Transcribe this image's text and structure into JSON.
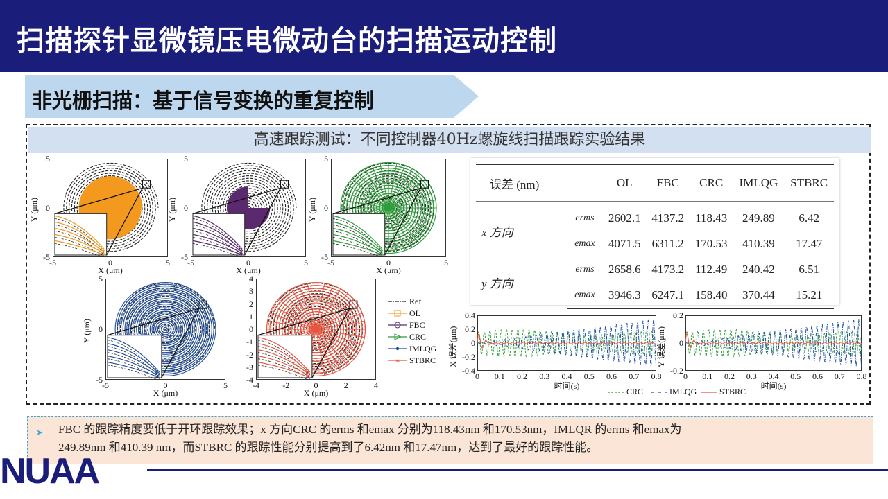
{
  "header": {
    "title": "扫描探针显微镜压电微动台的扫描运动控制"
  },
  "section": {
    "title": "非光栅扫描：基于信号变换的重复控制"
  },
  "panel": {
    "caption": "高速跟踪测试：不同控制器40Hz螺旋线扫描跟踪实验结果"
  },
  "colors": {
    "header_bg": "#1a1d7a",
    "ref": "#222222",
    "OL": "#f39a1e",
    "FBC": "#5b2a6e",
    "CRC": "#2e9e3a",
    "IMLQG": "#1f4e9c",
    "STBRC": "#e8543e"
  },
  "spiral_plots": [
    {
      "name": "OL",
      "xlabel": "X (μm)",
      "ylabel": "Y (μm)",
      "xticks": [
        "-5",
        "0",
        "5"
      ],
      "yticks": [
        "5",
        "0",
        "-5"
      ],
      "color": "#f39a1e"
    },
    {
      "name": "FBC",
      "xlabel": "X (μm)",
      "ylabel": "Y (μm)",
      "xticks": [
        "-5",
        "0",
        "5"
      ],
      "yticks": [
        "5",
        "0",
        "-5"
      ],
      "color": "#5b2a6e"
    },
    {
      "name": "CRC",
      "xlabel": "X (μm)",
      "ylabel": "Y (μm)",
      "xticks": [
        "-5",
        "0",
        "5"
      ],
      "yticks": [
        "5",
        "0",
        "-5"
      ],
      "color": "#2e9e3a"
    },
    {
      "name": "IMLQG",
      "xlabel": "X (μm)",
      "ylabel": "Y (μm)",
      "xticks": [
        "-5",
        "0",
        "5"
      ],
      "yticks": [
        "5",
        "0",
        "-5"
      ],
      "color": "#1f4e9c"
    },
    {
      "name": "STBRC",
      "xlabel": "X (μm)",
      "ylabel": "",
      "xticks": [
        "-4",
        "-2",
        "0",
        "2",
        "4"
      ],
      "yticks": [
        "4",
        "3",
        "2",
        "1",
        "0",
        "-1",
        "-2",
        "-3",
        "-4"
      ],
      "color": "#e8543e"
    }
  ],
  "legend": [
    {
      "label": "Ref",
      "color": "#222222",
      "marker": "dashdot"
    },
    {
      "label": "OL",
      "color": "#f39a1e",
      "marker": "square"
    },
    {
      "label": "FBC",
      "color": "#5b2a6e",
      "marker": "circle"
    },
    {
      "label": "CRC",
      "color": "#2e9e3a",
      "marker": "triangle"
    },
    {
      "label": "IMLQG",
      "color": "#1f4e9c",
      "marker": "dot"
    },
    {
      "label": "STBRC",
      "color": "#e8543e",
      "marker": "star"
    }
  ],
  "table": {
    "header": [
      "误差 (nm)",
      "",
      "OL",
      "FBC",
      "CRC",
      "IMLQG",
      "STBRC"
    ],
    "groups": [
      {
        "direction": "x 方向",
        "rows": [
          {
            "metric": "erms",
            "values": [
              "2602.1",
              "4137.2",
              "118.43",
              "249.89",
              "6.42"
            ]
          },
          {
            "metric": "emax",
            "values": [
              "4071.5",
              "6311.2",
              "170.53",
              "410.39",
              "17.47"
            ]
          }
        ]
      },
      {
        "direction": "y 方向",
        "rows": [
          {
            "metric": "erms",
            "values": [
              "2658.6",
              "4173.2",
              "112.49",
              "240.42",
              "6.51"
            ]
          },
          {
            "metric": "emax",
            "values": [
              "3946.3",
              "6247.1",
              "158.40",
              "370.44",
              "15.21"
            ]
          }
        ]
      }
    ]
  },
  "chart_data": [
    {
      "type": "line",
      "ylabel": "X 误差(μm)",
      "xlabel": "时间(s)",
      "xlim": [
        0,
        0.8
      ],
      "ylim": [
        -0.4,
        0.4
      ],
      "xticks": [
        "0",
        "0.1",
        "0.2",
        "0.3",
        "0.4",
        "0.5",
        "0.6",
        "0.7",
        "0.8"
      ],
      "yticks": [
        "0.4",
        "0.2",
        "0",
        "-0.2",
        "-0.4"
      ],
      "series": [
        {
          "name": "CRC"
        },
        {
          "name": "IMLQG"
        },
        {
          "name": "STBRC"
        }
      ]
    },
    {
      "type": "line",
      "ylabel": "Y 误差(μm)",
      "xlabel": "时间(s)",
      "xlim": [
        0,
        0.8
      ],
      "ylim": [
        -0.2,
        0.2
      ],
      "xticks": [
        "0",
        "0.1",
        "0.2",
        "0.3",
        "0.4",
        "0.5",
        "0.6",
        "0.7",
        "0.8"
      ],
      "yticks": [
        "0.2",
        "0",
        "-0.2"
      ],
      "series": [
        {
          "name": "CRC"
        },
        {
          "name": "IMLQG"
        },
        {
          "name": "STBRC"
        }
      ]
    }
  ],
  "error_legend": [
    "CRC",
    "IMLQG",
    "STBRC"
  ],
  "summary": {
    "line1": "FBC 的跟踪精度要低于开环跟踪效果；x 方向CRC 的erms 和emax 分别为118.43nm 和170.53nm，IMLQR 的erms 和emax为",
    "line2": "249.89nm 和410.39 nm，而STBRC 的跟踪性能分别提高到了6.42nm 和17.47nm，达到了最好的跟踪性能。"
  },
  "logo": {
    "text": "NUAA"
  }
}
